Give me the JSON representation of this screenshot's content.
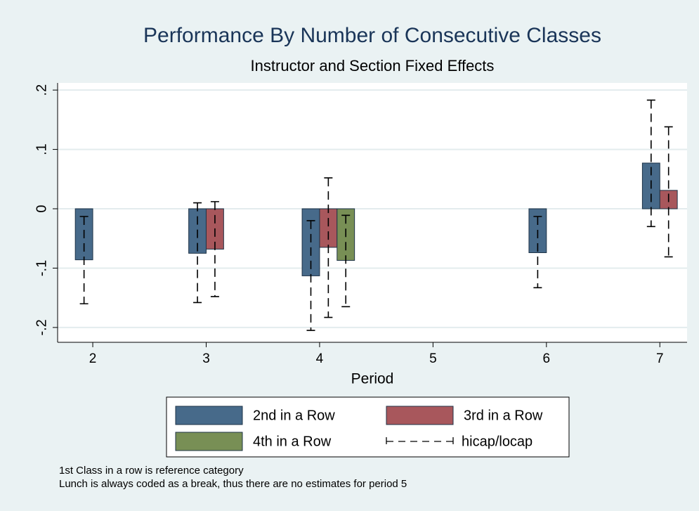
{
  "chart_data": {
    "type": "bar_errorbar",
    "title": "Performance By Number of Consecutive Classes",
    "subtitle": "Instructor and Section Fixed Effects",
    "x_label": "Period",
    "x": [
      2,
      3,
      4,
      6,
      7
    ],
    "xlim": [
      1.69,
      7.24
    ],
    "xticks": [
      2,
      3,
      4,
      5,
      6,
      7
    ],
    "ylim": [
      -0.225,
      0.212
    ],
    "yticks": [
      {
        "value": -0.2,
        "label": "-.2"
      },
      {
        "value": -0.1,
        "label": "-.1"
      },
      0,
      {
        "value": 0.1,
        "label": ".1"
      },
      {
        "value": 0.2,
        "label": ".2"
      }
    ],
    "grid": true,
    "series": [
      {
        "name": "2nd in a Row",
        "color": "#476a8a",
        "values": [
          -0.086,
          -0.075,
          -0.113,
          -0.074,
          0.077
        ],
        "hi": [
          -0.013,
          0.01,
          -0.02,
          -0.013,
          0.183
        ],
        "lo": [
          -0.16,
          -0.158,
          -0.205,
          -0.133,
          -0.03
        ]
      },
      {
        "name": "3rd in a Row",
        "color": "#a8575c",
        "values": [
          null,
          -0.068,
          -0.065,
          null,
          0.031
        ],
        "hi": [
          null,
          0.012,
          0.052,
          null,
          0.138
        ],
        "lo": [
          null,
          -0.148,
          -0.183,
          null,
          -0.081
        ]
      },
      {
        "name": "4th in a Row",
        "color": "#788f55",
        "values": [
          null,
          null,
          -0.087,
          null,
          null
        ],
        "hi": [
          null,
          null,
          -0.011,
          null,
          null
        ],
        "lo": [
          null,
          null,
          -0.165,
          null,
          null
        ]
      }
    ],
    "errorbar_name": "hicap/locap",
    "notes": [
      "1st Class in a row is reference category",
      "Lunch is always coded as a break, thus there are no estimates for period 5"
    ]
  }
}
